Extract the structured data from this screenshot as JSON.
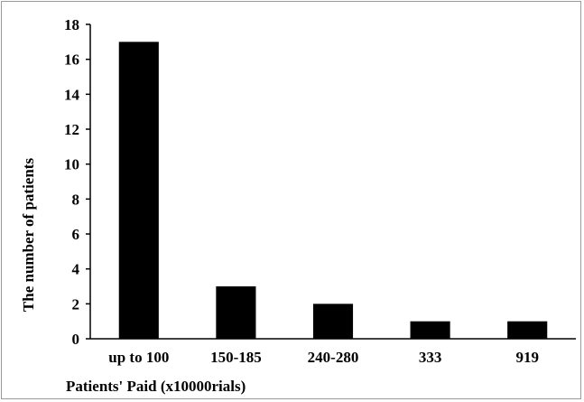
{
  "chart_data": {
    "type": "bar",
    "categories": [
      "up to 100",
      "150-185",
      "240-280",
      "333",
      "919"
    ],
    "values": [
      17,
      3,
      2,
      1,
      1
    ],
    "title": "",
    "xlabel": "Patients' Paid (x10000rials)",
    "ylabel": "The number of patients",
    "ylim": [
      0,
      18
    ],
    "yticks": [
      0,
      2,
      4,
      6,
      8,
      10,
      12,
      14,
      16,
      18
    ],
    "grid": false,
    "legend": "none",
    "bar_color": "#000000"
  }
}
